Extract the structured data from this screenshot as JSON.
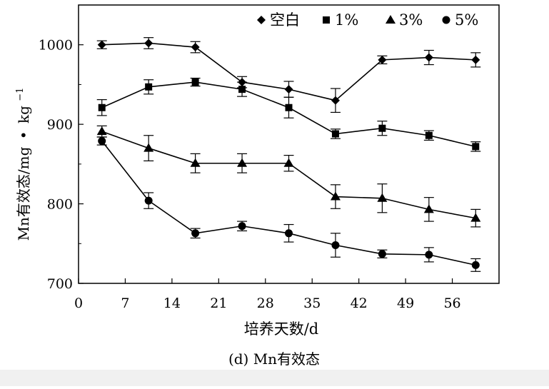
{
  "chart_data": {
    "type": "line",
    "caption": "(d) Mn有效态",
    "xlabel": "培养天数/d",
    "ylabel": "Mn有效态/mg·kg⁻¹",
    "ylabel_parts": {
      "main": "Mn有效态/mg",
      "dot": "•",
      "unit": "kg",
      "sup": "−1"
    },
    "xlim": [
      0,
      63
    ],
    "ylim": [
      700,
      1050
    ],
    "x_ticks": [
      0,
      7,
      14,
      21,
      28,
      35,
      42,
      49,
      56
    ],
    "y_ticks": [
      700,
      800,
      900,
      1000
    ],
    "grid": false,
    "legend_position": "top-right",
    "x": [
      3.5,
      10.5,
      17.5,
      24.5,
      31.5,
      38.5,
      45.5,
      52.5,
      59.5
    ],
    "series": [
      {
        "name": "空白",
        "marker": "diamond",
        "values": [
          1000,
          1002,
          997,
          953,
          944,
          930,
          981,
          984,
          981
        ],
        "errors": [
          5,
          7,
          7,
          7,
          10,
          15,
          5,
          9,
          9
        ]
      },
      {
        "name": "1%",
        "marker": "square",
        "values": [
          921,
          947,
          953,
          944,
          921,
          888,
          895,
          886,
          872
        ],
        "errors": [
          10,
          9,
          5,
          9,
          13,
          6,
          9,
          6,
          6
        ]
      },
      {
        "name": "3%",
        "marker": "triangle",
        "values": [
          891,
          870,
          851,
          851,
          851,
          809,
          807,
          793,
          782
        ],
        "errors": [
          7,
          16,
          12,
          12,
          10,
          15,
          18,
          15,
          11
        ]
      },
      {
        "name": "5%",
        "marker": "circle",
        "values": [
          879,
          804,
          763,
          772,
          763,
          748,
          737,
          736,
          723
        ],
        "errors": [
          5,
          10,
          6,
          6,
          11,
          15,
          5,
          9,
          8
        ]
      }
    ]
  }
}
